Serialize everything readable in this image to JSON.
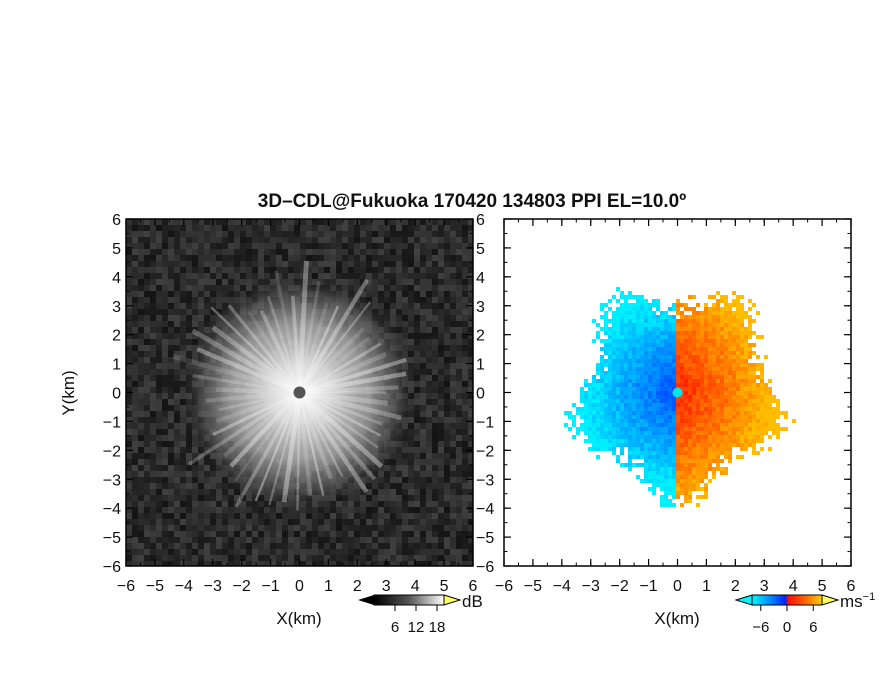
{
  "chart_data": [
    {
      "type": "heatmap",
      "panel": "left",
      "title": "3D–CDL@Fukuoka 170420 134803 PPI EL=10.0º",
      "xlabel": "X(km)",
      "ylabel": "Y(km)",
      "xlim": [
        -6,
        6
      ],
      "ylim": [
        -6,
        6
      ],
      "xticks": [
        "−6",
        "−5",
        "−4",
        "−3",
        "−2",
        "−1",
        "0",
        "1",
        "2",
        "3",
        "4",
        "5",
        "6"
      ],
      "yticks": [
        "6",
        "5",
        "4",
        "3",
        "2",
        "1",
        "0",
        "−1",
        "−2",
        "−3",
        "−4",
        "−5",
        "−6"
      ],
      "colorbar": {
        "unit": "dB",
        "ticks": [
          "6",
          "12",
          "18"
        ],
        "tick_values": [
          6,
          12,
          18
        ],
        "range": [
          0,
          20
        ],
        "colormap": "grayscale"
      },
      "description_values": {
        "echo_radius_km": 3.8,
        "center_marker": [
          0,
          0
        ]
      },
      "colors": {
        "low": "#1e1e1e",
        "high": "#f2f2f2",
        "center": "#555555"
      }
    },
    {
      "type": "heatmap",
      "panel": "right",
      "xlabel": "X(km)",
      "xlim": [
        -6,
        6
      ],
      "ylim": [
        -6,
        6
      ],
      "xticks": [
        "−6",
        "−5",
        "−4",
        "−3",
        "−2",
        "−1",
        "0",
        "1",
        "2",
        "3",
        "4",
        "5",
        "6"
      ],
      "colorbar": {
        "unit": "ms",
        "unit_sup": "−1",
        "ticks": [
          "−6",
          "0",
          "6"
        ],
        "tick_values": [
          -6,
          0,
          6
        ],
        "range": [
          -8,
          8
        ],
        "colormap": "cyan-blue-red-orange"
      },
      "description_values": {
        "echo_radius_km": 3.8
      },
      "colors": {
        "cyan": "#00e5f0",
        "blue": "#0050ff",
        "red": "#ff3000",
        "orange": "#ffa000"
      }
    }
  ]
}
